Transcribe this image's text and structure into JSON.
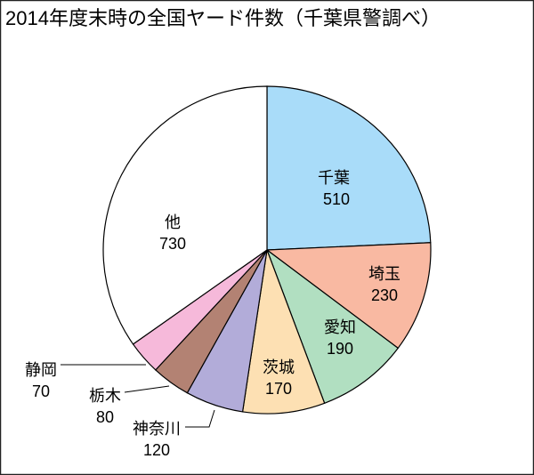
{
  "chart_data": {
    "type": "pie",
    "title": "2014年度末時の全国ヤード件数（千葉県警調べ）",
    "categories": [
      "千葉",
      "埼玉",
      "愛知",
      "茨城",
      "神奈川",
      "栃木",
      "静岡",
      "他"
    ],
    "values": [
      510,
      230,
      190,
      170,
      120,
      80,
      70,
      730
    ],
    "colors": [
      "#a9dcf9",
      "#f9b9a2",
      "#b1dfc1",
      "#fde0b3",
      "#b2acd9",
      "#b38273",
      "#f6b9da",
      "#ffffff"
    ],
    "start": "top",
    "direction": "clockwise",
    "legend": "none"
  }
}
